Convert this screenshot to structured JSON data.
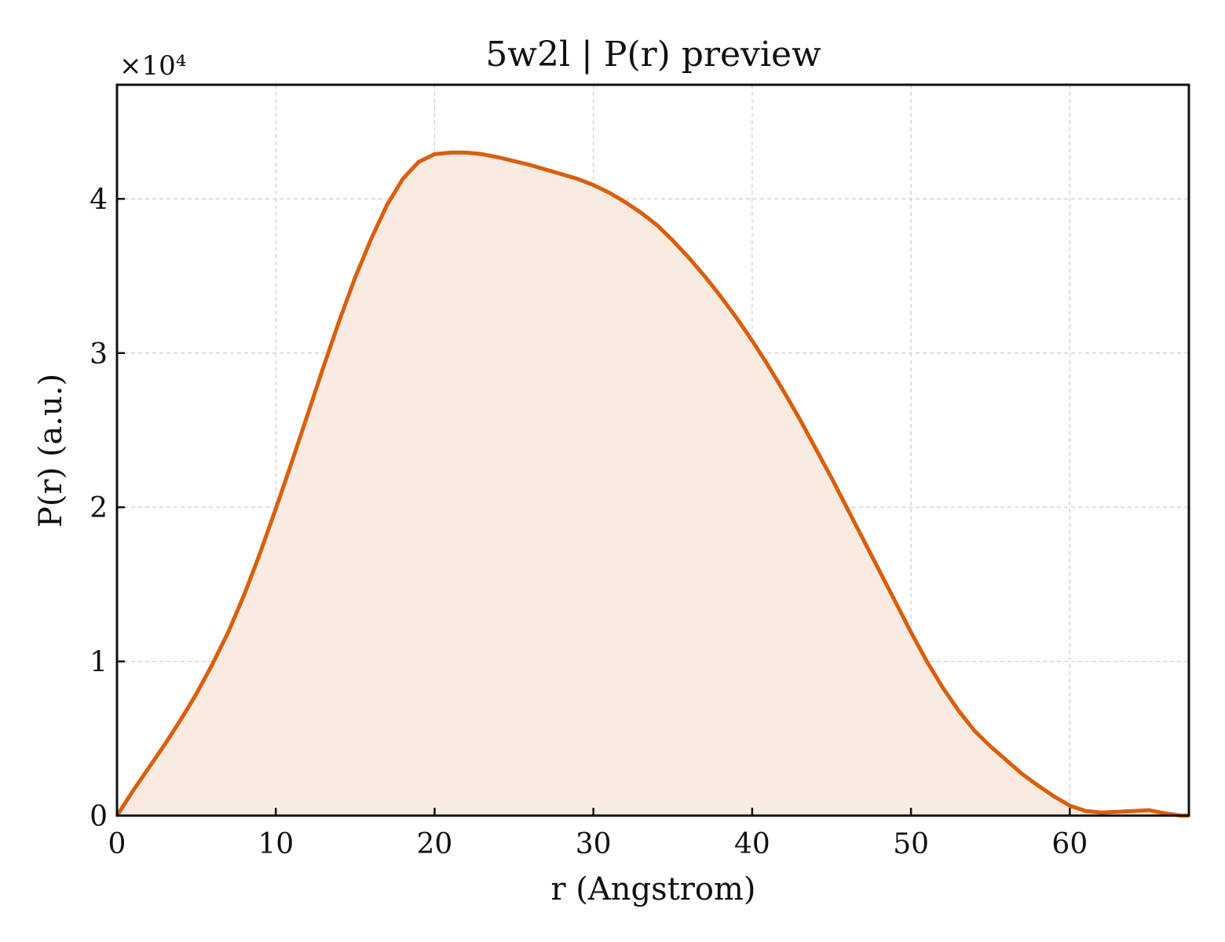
{
  "chart_data": {
    "type": "area",
    "title": "5w2l | P(r) preview",
    "xlabel": "r (Angstrom)",
    "ylabel": "P(r) (a.u.)",
    "y_multiplier_label": "×10⁴",
    "xlim": [
      0,
      67.5
    ],
    "ylim": [
      0,
      47400
    ],
    "x_ticks": [
      0,
      10,
      20,
      30,
      40,
      50,
      60
    ],
    "y_ticks": [
      0,
      10000,
      20000,
      30000,
      40000
    ],
    "x_tick_labels": [
      "0",
      "10",
      "20",
      "30",
      "40",
      "50",
      "60"
    ],
    "y_tick_labels": [
      "0",
      "1",
      "2",
      "3",
      "4"
    ],
    "grid": true,
    "line_color": "#d95f0e",
    "fill_color": "#f9ebe0",
    "series": [
      {
        "x": [
          0,
          1,
          2,
          3,
          4,
          5,
          6,
          7,
          8,
          9,
          10,
          11,
          12,
          13,
          14,
          15,
          16,
          17,
          18,
          19,
          20,
          21,
          22,
          23,
          24,
          25,
          26,
          27,
          28,
          29,
          30,
          31,
          32,
          33,
          34,
          35,
          36,
          37,
          38,
          39,
          40,
          41,
          42,
          43,
          44,
          45,
          46,
          47,
          48,
          49,
          50,
          51,
          52,
          53,
          54,
          55,
          56,
          57,
          58,
          59,
          60,
          61,
          62,
          63,
          64,
          65,
          66,
          67,
          67.5
        ],
        "y": [
          0,
          1600,
          3100,
          4600,
          6200,
          7900,
          9800,
          11900,
          14300,
          17000,
          19900,
          22900,
          26000,
          29100,
          32100,
          34900,
          37400,
          39600,
          41300,
          42400,
          42900,
          43000,
          43000,
          42900,
          42700,
          42450,
          42200,
          41900,
          41600,
          41300,
          40900,
          40400,
          39800,
          39100,
          38300,
          37300,
          36200,
          35000,
          33700,
          32300,
          30800,
          29200,
          27500,
          25700,
          23800,
          21900,
          19900,
          17900,
          15900,
          13900,
          11900,
          10000,
          8300,
          6800,
          5500,
          4500,
          3600,
          2700,
          1950,
          1250,
          650,
          300,
          200,
          250,
          300,
          350,
          150,
          0,
          0
        ]
      }
    ]
  }
}
